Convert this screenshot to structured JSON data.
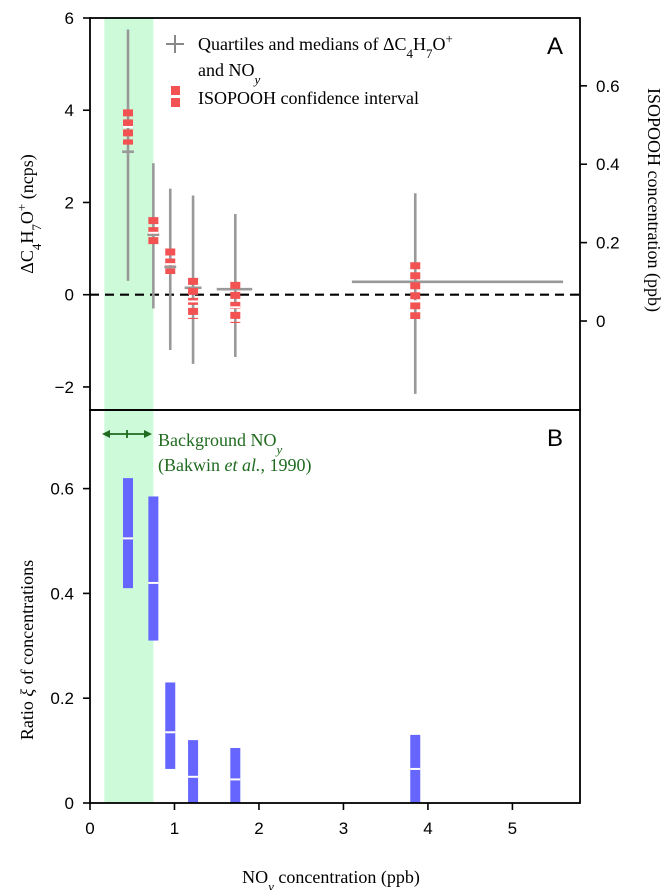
{
  "chart_data": [
    {
      "panel": "A",
      "type": "scatter",
      "panel_label": "A",
      "xlabel": "NOy concentration (ppb)",
      "ylabel": "ΔC4H7O+ (ncps)",
      "y2label": "ISOPOOH concentration (ppb)",
      "xlim": [
        0,
        5.8
      ],
      "ylim": [
        -2.5,
        6
      ],
      "y2lim": [
        -0.227,
        0.773
      ],
      "x_ticks": [
        "0",
        "1",
        "2",
        "3",
        "4",
        "5"
      ],
      "y_ticks": [
        -2,
        0,
        2,
        4,
        6
      ],
      "y2_ticks": [
        0,
        0.2,
        0.4,
        0.6
      ],
      "reference_line_y": 0,
      "legend": {
        "position": "top-right",
        "entries": [
          {
            "label": "Quartiles and medians of ΔC4H7O+ and NOy",
            "color": "#999999"
          },
          {
            "label": "ISOPOOH confidence interval",
            "color": "#f25252"
          }
        ]
      },
      "series": [
        {
          "name": "Quartiles and medians of ΔC4H7O+ and NOy",
          "color": "#999999",
          "points": [
            {
              "x": 0.45,
              "x_low": 0.38,
              "x_high": 0.52,
              "y": 3.1,
              "y_low": 0.3,
              "y_high": 5.75
            },
            {
              "x": 0.75,
              "x_low": 0.68,
              "x_high": 0.82,
              "y": 1.3,
              "y_low": -0.3,
              "y_high": 2.85
            },
            {
              "x": 0.95,
              "x_low": 0.88,
              "x_high": 1.02,
              "y": 0.6,
              "y_low": -1.2,
              "y_high": 2.3
            },
            {
              "x": 1.22,
              "x_low": 1.12,
              "x_high": 1.32,
              "y": 0.15,
              "y_low": -1.5,
              "y_high": 2.15
            },
            {
              "x": 1.72,
              "x_low": 1.5,
              "x_high": 1.92,
              "y": 0.12,
              "y_low": -1.35,
              "y_high": 1.75
            },
            {
              "x": 3.85,
              "x_low": 3.1,
              "x_high": 5.6,
              "y": 0.28,
              "y_low": -2.15,
              "y_high": 2.2
            }
          ]
        },
        {
          "name": "ISOPOOH confidence interval",
          "color": "#f25252",
          "axis": "right",
          "points": [
            {
              "x": 0.45,
              "low": 0.45,
              "median": 0.495,
              "high": 0.54
            },
            {
              "x": 0.75,
              "low": 0.19,
              "median": 0.225,
              "high": 0.265
            },
            {
              "x": 0.95,
              "low": 0.12,
              "median": 0.145,
              "high": 0.185
            },
            {
              "x": 1.22,
              "low": 0.005,
              "median": 0.05,
              "high": 0.11
            },
            {
              "x": 1.72,
              "low": -0.005,
              "median": 0.035,
              "high": 0.1
            },
            {
              "x": 3.85,
              "low": 0.005,
              "median": 0.05,
              "high": 0.15
            }
          ]
        }
      ],
      "shaded_region": {
        "x_range": [
          0.17,
          0.75
        ],
        "color": "#cdfbd9"
      }
    },
    {
      "panel": "B",
      "type": "bar",
      "panel_label": "B",
      "xlabel": "NOy concentration (ppb)",
      "ylabel": "Ratio ξ of concentrations",
      "xlim": [
        0,
        5.8
      ],
      "ylim": [
        0,
        0.75
      ],
      "x_ticks": [
        "0",
        "1",
        "2",
        "3",
        "4",
        "5"
      ],
      "y_ticks": [
        "0",
        "0.2",
        "0.4",
        "0.6"
      ],
      "annotation": {
        "text_line1": "Background NOy",
        "text_line2": "(Bakwin et al., 1990)",
        "color": "#1f6b1f",
        "x_range": [
          0.17,
          0.75
        ]
      },
      "series": [
        {
          "name": "Ratio ξ",
          "color": "#6666ff",
          "points": [
            {
              "x": 0.45,
              "low": 0.41,
              "median": 0.505,
              "high": 0.62
            },
            {
              "x": 0.75,
              "low": 0.31,
              "median": 0.42,
              "high": 0.585
            },
            {
              "x": 0.95,
              "low": 0.065,
              "median": 0.135,
              "high": 0.23
            },
            {
              "x": 1.22,
              "low": 0.0,
              "median": 0.05,
              "high": 0.12
            },
            {
              "x": 1.72,
              "low": 0.0,
              "median": 0.045,
              "high": 0.105
            },
            {
              "x": 3.85,
              "low": 0.0,
              "median": 0.065,
              "high": 0.13
            }
          ]
        }
      ],
      "shaded_region": {
        "x_range": [
          0.17,
          0.75
        ],
        "color": "#cdfbd9"
      }
    }
  ]
}
